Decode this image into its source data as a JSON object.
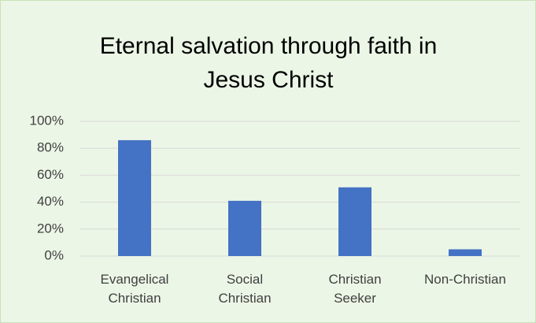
{
  "chart_data": {
    "type": "bar",
    "title": "Eternal salvation through faith in Jesus Christ",
    "categories": [
      "Evangelical Christian",
      "Social Christian",
      "Christian Seeker",
      "Non-Christian"
    ],
    "values": [
      86,
      41,
      51,
      5
    ],
    "color": "#4472c4",
    "ylim": [
      0,
      100
    ],
    "yticks": [
      {
        "value": 0,
        "label": "0%"
      },
      {
        "value": 20,
        "label": "20%"
      },
      {
        "value": 40,
        "label": "40%"
      },
      {
        "value": 60,
        "label": "60%"
      },
      {
        "value": 80,
        "label": "80%"
      },
      {
        "value": 100,
        "label": "100%"
      }
    ],
    "grid": true
  }
}
